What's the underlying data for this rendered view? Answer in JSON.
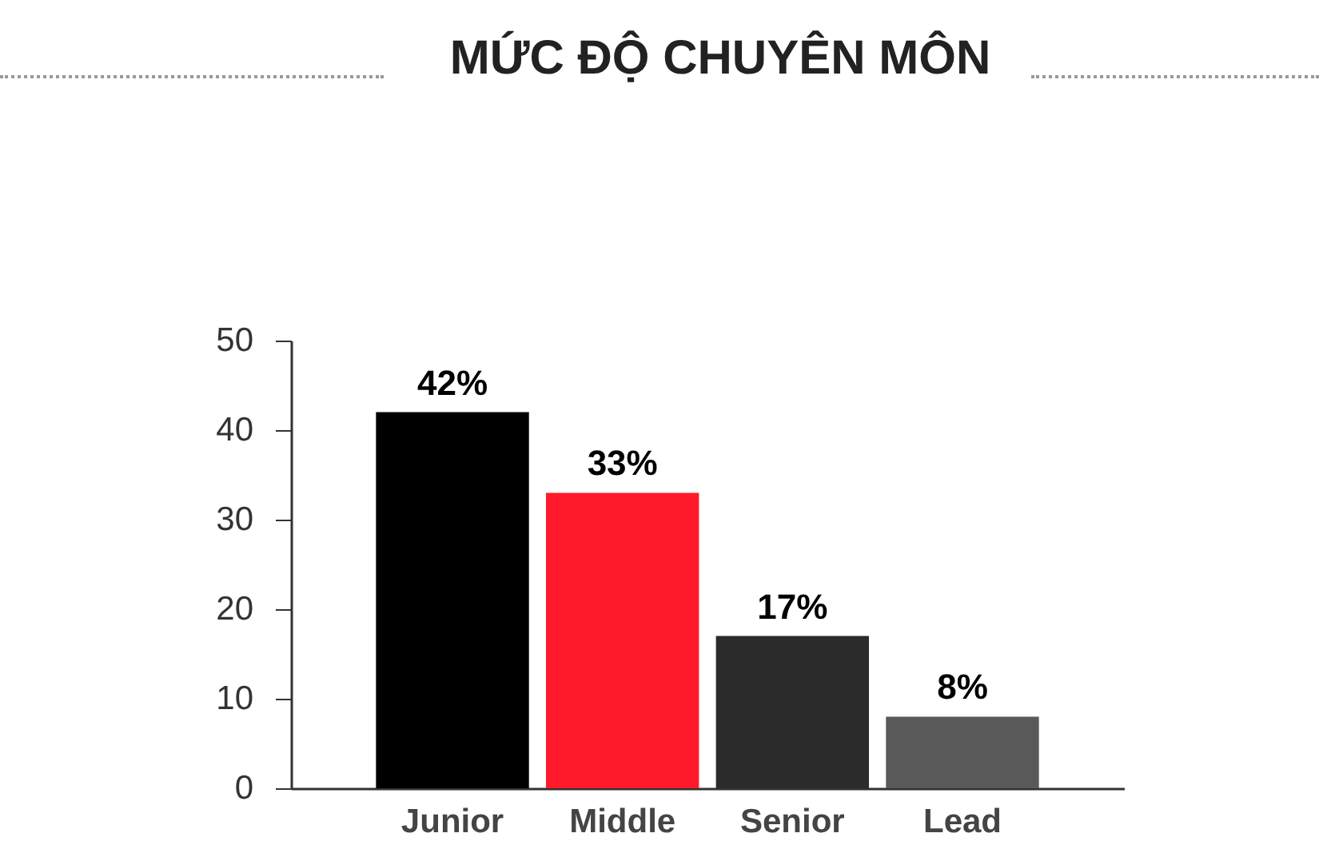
{
  "chart_data": {
    "type": "bar",
    "title": "MỨC ĐỘ CHUYÊN MÔN",
    "categories": [
      "Junior",
      "Middle",
      "Senior",
      "Lead"
    ],
    "values": [
      42,
      33,
      17,
      8
    ],
    "colors": [
      "#000000",
      "#ff1a2b",
      "#2b2b2b",
      "#595959"
    ],
    "value_labels": [
      "42%",
      "33%",
      "17%",
      "8%"
    ],
    "ylim": [
      0,
      50
    ],
    "yticks": [
      0,
      10,
      20,
      30,
      40,
      50
    ],
    "grid": false
  }
}
